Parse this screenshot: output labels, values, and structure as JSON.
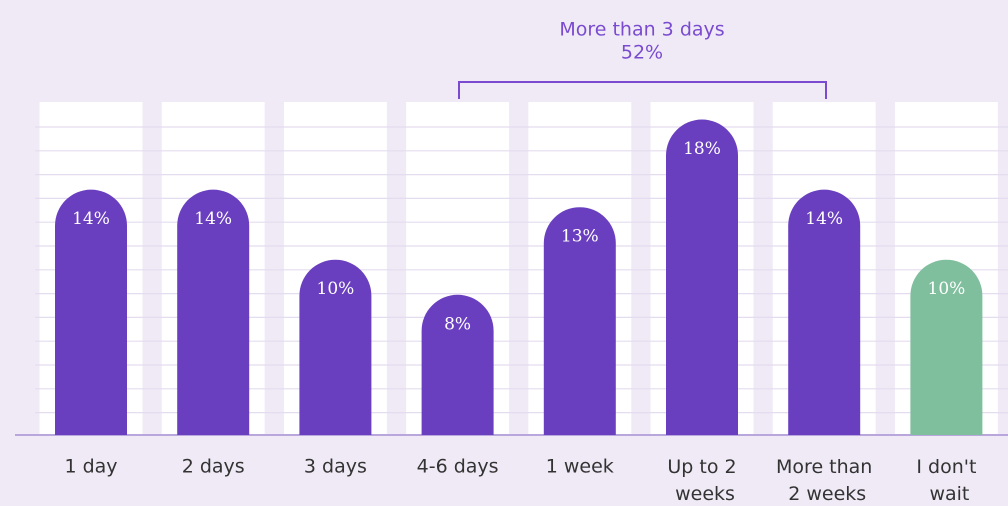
{
  "chart_data": {
    "type": "bar",
    "categories": [
      "1 day",
      "2 days",
      "3 days",
      "4-6 days",
      "1 week",
      "Up to 2 weeks",
      "More than 2 weeks",
      "I don't wait"
    ],
    "values": [
      14,
      14,
      10,
      8,
      13,
      18,
      14,
      10
    ],
    "value_labels": [
      "14%",
      "14%",
      "10%",
      "8%",
      "13%",
      "18%",
      "14%",
      "10%"
    ],
    "colors": [
      "#6a3fbf",
      "#6a3fbf",
      "#6a3fbf",
      "#6a3fbf",
      "#6a3fbf",
      "#6a3fbf",
      "#6a3fbf",
      "#80bf9e"
    ],
    "ylim": [
      0,
      19
    ],
    "annotation": {
      "text": "More than 3 days",
      "value": 52,
      "label": "52%"
    }
  }
}
